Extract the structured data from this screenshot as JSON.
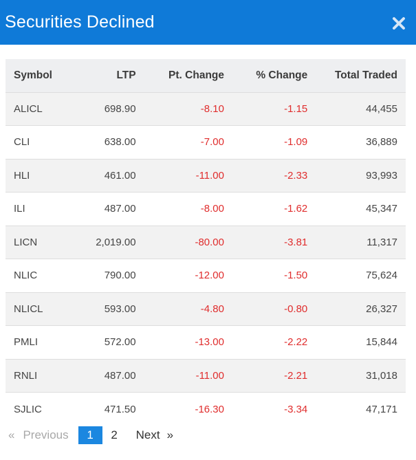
{
  "header": {
    "title": "Securities Declined",
    "close_icon": "close-icon"
  },
  "table": {
    "columns": [
      "Symbol",
      "LTP",
      "Pt. Change",
      "% Change",
      "Total Traded"
    ],
    "rows": [
      {
        "symbol": "ALICL",
        "ltp": "698.90",
        "pt_change": "-8.10",
        "pct_change": "-1.15",
        "total_traded": "44,455"
      },
      {
        "symbol": "CLI",
        "ltp": "638.00",
        "pt_change": "-7.00",
        "pct_change": "-1.09",
        "total_traded": "36,889"
      },
      {
        "symbol": "HLI",
        "ltp": "461.00",
        "pt_change": "-11.00",
        "pct_change": "-2.33",
        "total_traded": "93,993"
      },
      {
        "symbol": "ILI",
        "ltp": "487.00",
        "pt_change": "-8.00",
        "pct_change": "-1.62",
        "total_traded": "45,347"
      },
      {
        "symbol": "LICN",
        "ltp": "2,019.00",
        "pt_change": "-80.00",
        "pct_change": "-3.81",
        "total_traded": "11,317"
      },
      {
        "symbol": "NLIC",
        "ltp": "790.00",
        "pt_change": "-12.00",
        "pct_change": "-1.50",
        "total_traded": "75,624"
      },
      {
        "symbol": "NLICL",
        "ltp": "593.00",
        "pt_change": "-4.80",
        "pct_change": "-0.80",
        "total_traded": "26,327"
      },
      {
        "symbol": "PMLI",
        "ltp": "572.00",
        "pt_change": "-13.00",
        "pct_change": "-2.22",
        "total_traded": "15,844"
      },
      {
        "symbol": "RNLI",
        "ltp": "487.00",
        "pt_change": "-11.00",
        "pct_change": "-2.21",
        "total_traded": "31,018"
      },
      {
        "symbol": "SJLIC",
        "ltp": "471.50",
        "pt_change": "-16.30",
        "pct_change": "-3.34",
        "total_traded": "47,171"
      }
    ]
  },
  "pagination": {
    "prev_chevron": "«",
    "prev_label": "Previous",
    "pages": [
      "1",
      "2"
    ],
    "current_page": "1",
    "next_label": "Next",
    "next_chevron": "»"
  },
  "colors": {
    "header_bg": "#0f7ad8",
    "negative": "#e02d2d",
    "active_page": "#1b87e0"
  }
}
